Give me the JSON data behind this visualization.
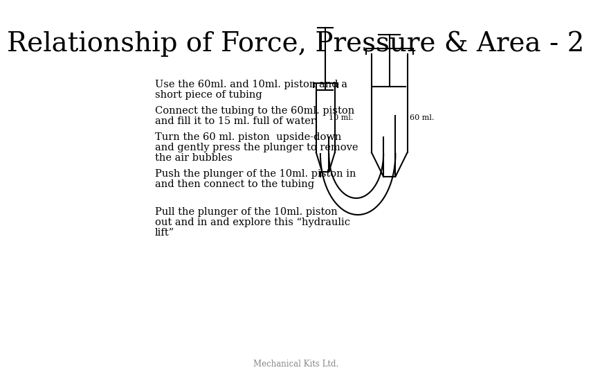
{
  "title": "Relationship of Force, Pressure & Area - 2",
  "title_fontsize": 28,
  "title_font": "DejaVu Serif",
  "background_color": "#ffffff",
  "text_color": "#000000",
  "bullet1_line1": "Use the 60ml. and 10ml. piston and a",
  "bullet1_line2": "short piece of tubing",
  "bullet2_line1": "Connect the tubing to the 60ml. piston",
  "bullet2_line2": "and fill it to 15 ml. full of water",
  "bullet3_line1": "Turn the 60 ml. piston  upside-down",
  "bullet3_line2": "and gently press the plunger to remove",
  "bullet3_line3": "the air bubbles",
  "bullet4_line1": "Push the plunger of the 10ml. piston in",
  "bullet4_line2": "and then connect to the tubing",
  "bullet5_line1": "Pull the plunger of the 10ml. piston",
  "bullet5_line2": "out and in and explore this “hydraulic",
  "bullet5_line3": "lift”",
  "footer": "Mechanical Kits Ltd.",
  "label_10ml": "10 ml.",
  "label_60ml": "60 ml."
}
